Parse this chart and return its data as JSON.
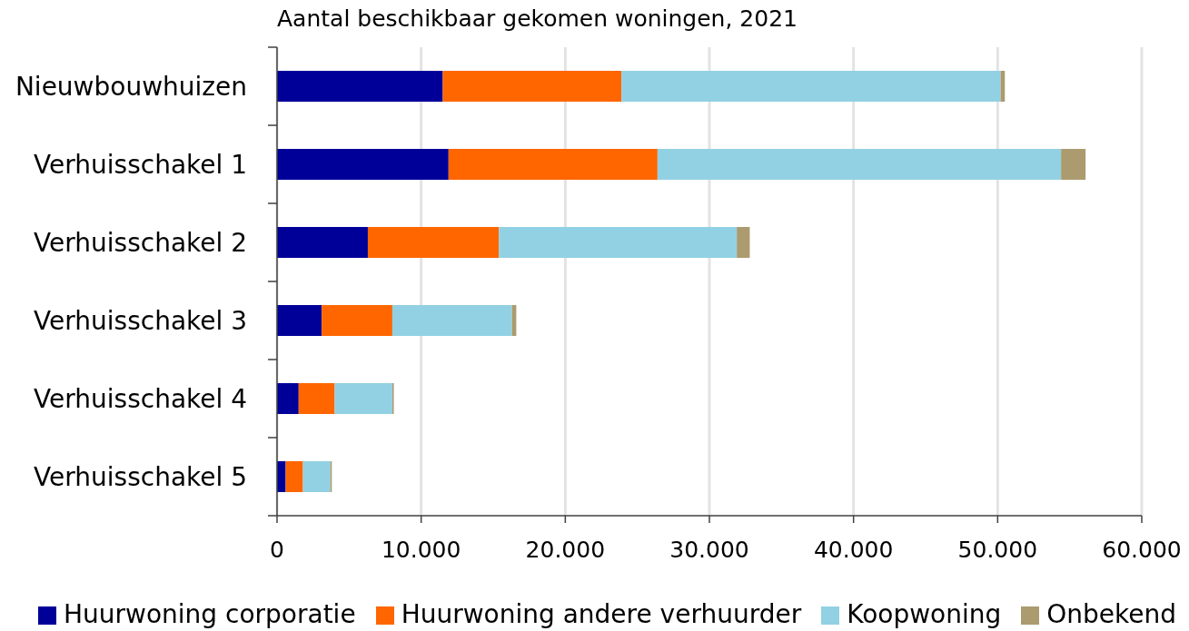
{
  "chart_data": {
    "type": "bar",
    "orientation": "horizontal",
    "stacked": true,
    "title": "Aantal beschikbaar gekomen woningen, 2021",
    "categories": [
      "Nieuwbouwhuizen",
      "Verhuisschakel 1",
      "Verhuisschakel 2",
      "Verhuisschakel 3",
      "Verhuisschakel 4",
      "Verhuisschakel 5"
    ],
    "series": [
      {
        "name": "Huurwoning corporatie",
        "color": "#000099",
        "values": [
          11500,
          11900,
          6300,
          3100,
          1500,
          600
        ]
      },
      {
        "name": "Huurwoning andere verhuurder",
        "color": "#ff6600",
        "values": [
          12400,
          14500,
          9100,
          4900,
          2500,
          1200
        ]
      },
      {
        "name": "Koopwoning",
        "color": "#92d1e3",
        "values": [
          26300,
          28000,
          16500,
          8300,
          4000,
          1900
        ]
      },
      {
        "name": "Onbekend",
        "color": "#ab9b6e",
        "values": [
          300,
          1700,
          900,
          300,
          100,
          100
        ]
      }
    ],
    "xlim": [
      0,
      60000
    ],
    "xticks": [
      0,
      {
        "value": 10000,
        "label": "10.000"
      },
      {
        "value": 20000,
        "label": "20.000"
      },
      {
        "value": 30000,
        "label": "30.000"
      },
      {
        "value": 40000,
        "label": "40.000"
      },
      {
        "value": 50000,
        "label": "50.000"
      },
      {
        "value": 60000,
        "label": "60.000"
      }
    ],
    "grid": "x",
    "legend": "bottom"
  }
}
